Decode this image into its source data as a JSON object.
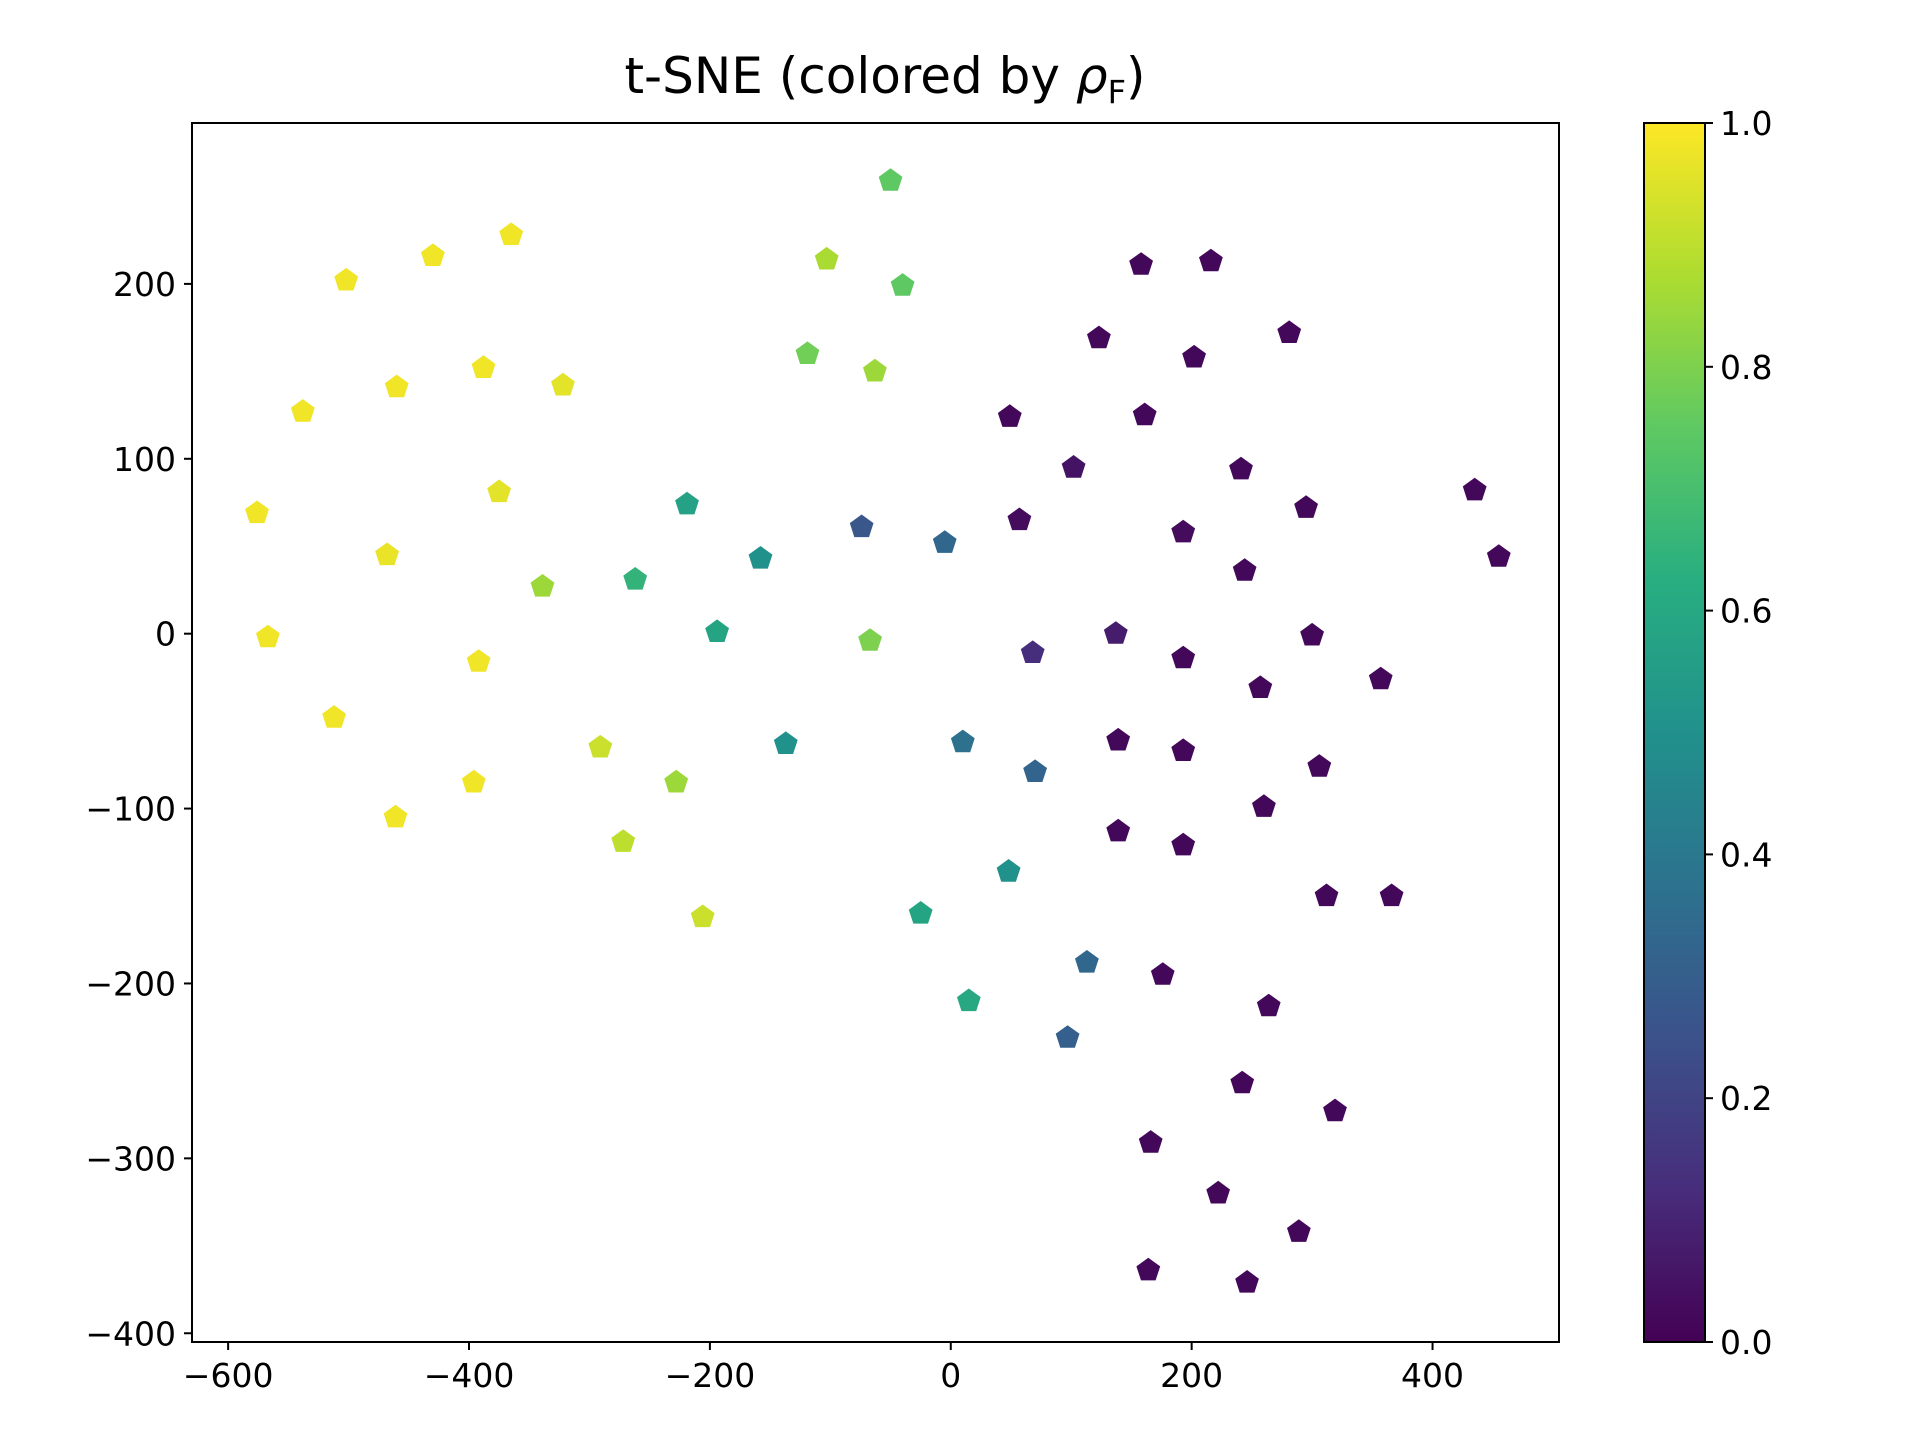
{
  "chart_data": {
    "type": "scatter",
    "title": "t-SNE (colored by ",
    "title_symbol": "ρ",
    "title_subscript": "F",
    "title_close": ")",
    "marker": "pentagon",
    "colormap": "viridis",
    "xlim": [
      -630,
      505
    ],
    "ylim": [
      -405,
      292
    ],
    "xticks": [
      -600,
      -400,
      -200,
      0,
      200,
      400
    ],
    "yticks": [
      -400,
      -300,
      -200,
      -100,
      0,
      100,
      200
    ],
    "xtick_labels": [
      "−600",
      "−400",
      "−200",
      "0",
      "200",
      "400"
    ],
    "ytick_labels": [
      "−400",
      "−300",
      "−200",
      "−100",
      "0",
      "100",
      "200"
    ],
    "colorbar": {
      "range": [
        0,
        1
      ],
      "ticks": [
        0.0,
        0.2,
        0.4,
        0.6,
        0.8,
        1.0
      ],
      "tick_labels": [
        "0.0",
        "0.2",
        "0.4",
        "0.6",
        "0.8",
        "1.0"
      ]
    },
    "points": [
      {
        "x": -365,
        "y": 228,
        "c": 0.98
      },
      {
        "x": -430,
        "y": 216,
        "c": 0.98
      },
      {
        "x": -502,
        "y": 202,
        "c": 0.98
      },
      {
        "x": -388,
        "y": 152,
        "c": 0.98
      },
      {
        "x": -460,
        "y": 141,
        "c": 0.98
      },
      {
        "x": -322,
        "y": 142,
        "c": 0.96
      },
      {
        "x": -538,
        "y": 127,
        "c": 0.98
      },
      {
        "x": -375,
        "y": 81,
        "c": 0.96
      },
      {
        "x": -576,
        "y": 69,
        "c": 0.98
      },
      {
        "x": -468,
        "y": 45,
        "c": 0.97
      },
      {
        "x": -567,
        "y": -2,
        "c": 0.98
      },
      {
        "x": -392,
        "y": -16,
        "c": 0.98
      },
      {
        "x": -512,
        "y": -48,
        "c": 0.98
      },
      {
        "x": -396,
        "y": -85,
        "c": 0.98
      },
      {
        "x": -461,
        "y": -105,
        "c": 0.98
      },
      {
        "x": -291,
        "y": -65,
        "c": 0.92
      },
      {
        "x": -272,
        "y": -119,
        "c": 0.9
      },
      {
        "x": -339,
        "y": 27,
        "c": 0.85
      },
      {
        "x": -228,
        "y": -85,
        "c": 0.85
      },
      {
        "x": -206,
        "y": -162,
        "c": 0.92
      },
      {
        "x": -103,
        "y": 214,
        "c": 0.87
      },
      {
        "x": -50,
        "y": 259,
        "c": 0.75
      },
      {
        "x": -40,
        "y": 199,
        "c": 0.75
      },
      {
        "x": -119,
        "y": 160,
        "c": 0.78
      },
      {
        "x": -63,
        "y": 150,
        "c": 0.85
      },
      {
        "x": -67,
        "y": -4,
        "c": 0.8
      },
      {
        "x": -262,
        "y": 31,
        "c": 0.65
      },
      {
        "x": -219,
        "y": 74,
        "c": 0.57
      },
      {
        "x": -194,
        "y": 1,
        "c": 0.58
      },
      {
        "x": -158,
        "y": 43,
        "c": 0.5
      },
      {
        "x": -137,
        "y": -63,
        "c": 0.5
      },
      {
        "x": -25,
        "y": -160,
        "c": 0.58
      },
      {
        "x": 15,
        "y": -210,
        "c": 0.6
      },
      {
        "x": 48,
        "y": -136,
        "c": 0.5
      },
      {
        "x": -74,
        "y": 61,
        "c": 0.27
      },
      {
        "x": -5,
        "y": 52,
        "c": 0.33
      },
      {
        "x": 10,
        "y": -62,
        "c": 0.37
      },
      {
        "x": 70,
        "y": -79,
        "c": 0.32
      },
      {
        "x": 113,
        "y": -188,
        "c": 0.33
      },
      {
        "x": 97,
        "y": -231,
        "c": 0.3
      },
      {
        "x": 68,
        "y": -11,
        "c": 0.13
      },
      {
        "x": 137,
        "y": 0,
        "c": 0.08
      },
      {
        "x": 158,
        "y": 211,
        "c": 0.02
      },
      {
        "x": 216,
        "y": 213,
        "c": 0.02
      },
      {
        "x": 123,
        "y": 169,
        "c": 0.02
      },
      {
        "x": 202,
        "y": 158,
        "c": 0.02
      },
      {
        "x": 281,
        "y": 172,
        "c": 0.02
      },
      {
        "x": 49,
        "y": 124,
        "c": 0.02
      },
      {
        "x": 161,
        "y": 125,
        "c": 0.02
      },
      {
        "x": 102,
        "y": 95,
        "c": 0.05
      },
      {
        "x": 241,
        "y": 94,
        "c": 0.02
      },
      {
        "x": 295,
        "y": 72,
        "c": 0.02
      },
      {
        "x": 435,
        "y": 82,
        "c": 0.02
      },
      {
        "x": 455,
        "y": 44,
        "c": 0.02
      },
      {
        "x": 57,
        "y": 65,
        "c": 0.03
      },
      {
        "x": 193,
        "y": 58,
        "c": 0.03
      },
      {
        "x": 244,
        "y": 36,
        "c": 0.02
      },
      {
        "x": 300,
        "y": -1,
        "c": 0.02
      },
      {
        "x": 193,
        "y": -14,
        "c": 0.02
      },
      {
        "x": 257,
        "y": -31,
        "c": 0.02
      },
      {
        "x": 357,
        "y": -26,
        "c": 0.02
      },
      {
        "x": 139,
        "y": -61,
        "c": 0.02
      },
      {
        "x": 193,
        "y": -67,
        "c": 0.02
      },
      {
        "x": 306,
        "y": -76,
        "c": 0.02
      },
      {
        "x": 260,
        "y": -99,
        "c": 0.02
      },
      {
        "x": 139,
        "y": -113,
        "c": 0.02
      },
      {
        "x": 193,
        "y": -121,
        "c": 0.02
      },
      {
        "x": 312,
        "y": -150,
        "c": 0.02
      },
      {
        "x": 366,
        "y": -150,
        "c": 0.02
      },
      {
        "x": 176,
        "y": -195,
        "c": 0.02
      },
      {
        "x": 264,
        "y": -213,
        "c": 0.02
      },
      {
        "x": 242,
        "y": -257,
        "c": 0.02
      },
      {
        "x": 319,
        "y": -273,
        "c": 0.02
      },
      {
        "x": 166,
        "y": -291,
        "c": 0.02
      },
      {
        "x": 222,
        "y": -320,
        "c": 0.02
      },
      {
        "x": 289,
        "y": -342,
        "c": 0.02
      },
      {
        "x": 164,
        "y": -364,
        "c": 0.02
      },
      {
        "x": 246,
        "y": -371,
        "c": 0.02
      }
    ]
  }
}
